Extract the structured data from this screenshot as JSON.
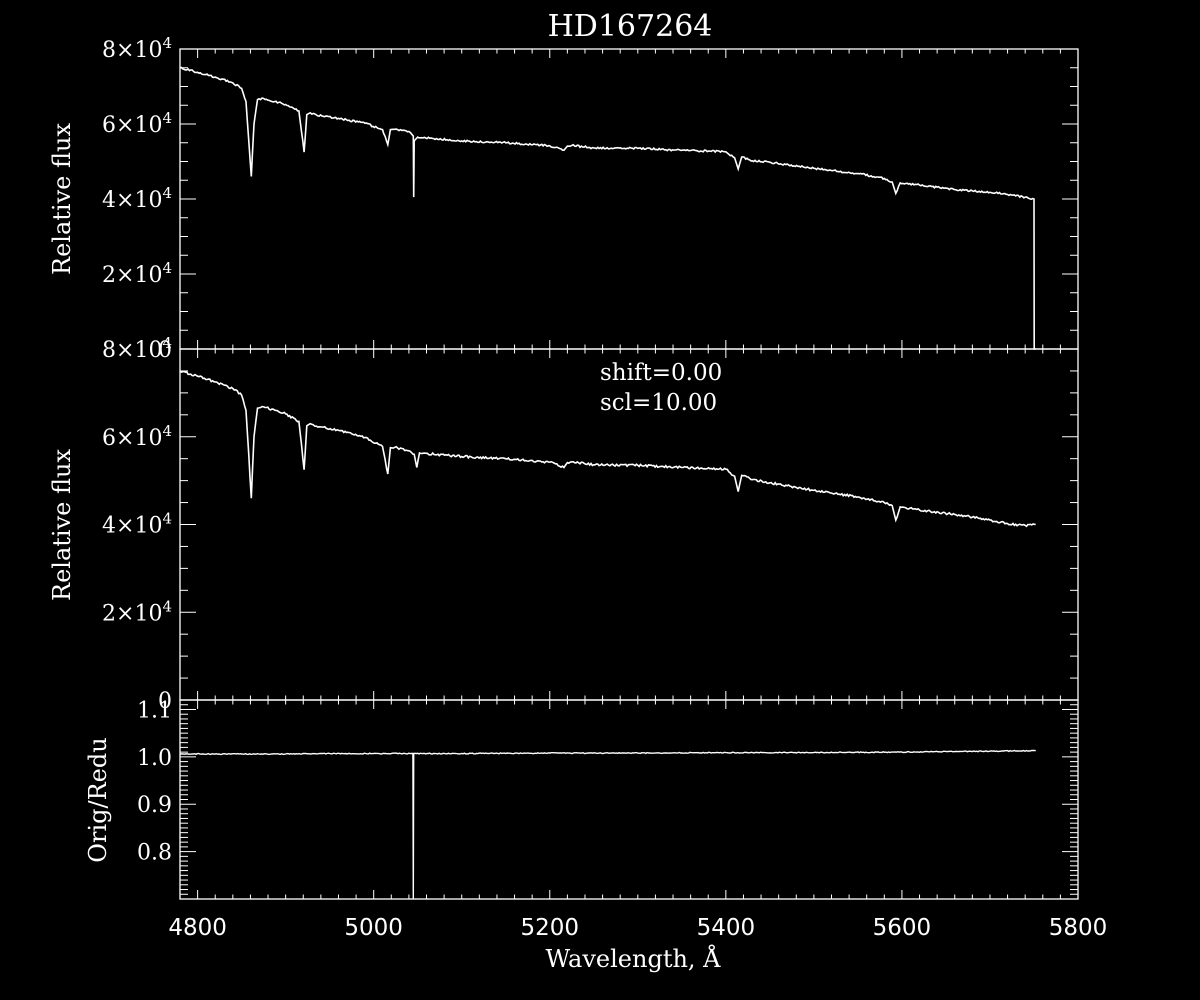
{
  "colors": {
    "background": "#000000",
    "foreground": "#ffffff"
  },
  "chart_data": [
    {
      "type": "line",
      "title": "HD167264",
      "ylabel": "Relative flux",
      "xlim": [
        4780,
        5800
      ],
      "ylim": [
        0,
        80000
      ],
      "y_ticks": [
        0,
        20000,
        40000,
        60000,
        80000
      ],
      "y_tick_labels": [
        {
          "base": "0",
          "exp": ""
        },
        {
          "base": "2×10",
          "exp": "4"
        },
        {
          "base": "4×10",
          "exp": "4"
        },
        {
          "base": "6×10",
          "exp": "4"
        },
        {
          "base": "8×10",
          "exp": "4"
        }
      ],
      "grid": false,
      "series": [
        {
          "x": [
            4780,
            4800,
            4820,
            4840,
            4850,
            4855,
            4861,
            4864,
            4868,
            4875,
            4900,
            4915,
            4921,
            4924,
            4928,
            4935,
            4960,
            4990,
            5010,
            5016,
            5019,
            5024,
            5040,
            5045,
            5045.5,
            5046,
            5050,
            5100,
            5150,
            5200,
            5216,
            5220,
            5225,
            5250,
            5300,
            5350,
            5400,
            5410,
            5414,
            5418,
            5430,
            5450,
            5500,
            5550,
            5580,
            5589,
            5593,
            5598,
            5620,
            5660,
            5700,
            5720,
            5740,
            5750,
            5750.2,
            5752
          ],
          "y": [
            75000,
            73800,
            72500,
            71000,
            69500,
            66000,
            46000,
            60000,
            66500,
            66800,
            65200,
            63500,
            52500,
            62500,
            63000,
            62400,
            61500,
            60200,
            58500,
            54500,
            58500,
            58600,
            58000,
            56800,
            40500,
            55500,
            56500,
            55500,
            55000,
            54200,
            53000,
            54100,
            54300,
            53600,
            53500,
            53000,
            52600,
            51000,
            48000,
            51200,
            50200,
            49800,
            48200,
            46800,
            45500,
            44500,
            41500,
            44300,
            43700,
            42500,
            41800,
            41200,
            40500,
            40000,
            0,
            0
          ]
        }
      ]
    },
    {
      "type": "line",
      "ylabel": "Relative flux",
      "xlim": [
        4780,
        5800
      ],
      "ylim": [
        0,
        80000
      ],
      "y_ticks": [
        0,
        20000,
        40000,
        60000,
        80000
      ],
      "y_tick_labels": [
        {
          "base": "0",
          "exp": ""
        },
        {
          "base": "2×10",
          "exp": "4"
        },
        {
          "base": "4×10",
          "exp": "4"
        },
        {
          "base": "6×10",
          "exp": "4"
        },
        {
          "base": "8×10",
          "exp": "4"
        }
      ],
      "annotations": [
        "shift=0.00",
        "scl=10.00"
      ],
      "grid": false,
      "series": [
        {
          "x": [
            4780,
            4800,
            4820,
            4840,
            4850,
            4855,
            4861,
            4864,
            4868,
            4875,
            4900,
            4915,
            4921,
            4924,
            4928,
            4935,
            4960,
            4990,
            5010,
            5016,
            5019,
            5024,
            5040,
            5046,
            5049,
            5052,
            5100,
            5150,
            5200,
            5216,
            5220,
            5225,
            5250,
            5300,
            5350,
            5400,
            5410,
            5414,
            5418,
            5430,
            5450,
            5500,
            5550,
            5580,
            5589,
            5593,
            5598,
            5620,
            5660,
            5700,
            5720,
            5740,
            5752
          ],
          "y": [
            75000,
            73800,
            72500,
            71000,
            69500,
            66000,
            46000,
            60000,
            66500,
            66800,
            65200,
            63500,
            52500,
            62500,
            63000,
            62400,
            61500,
            59800,
            57800,
            51500,
            57500,
            57600,
            56800,
            56000,
            53000,
            56300,
            55500,
            55000,
            54200,
            53000,
            54100,
            54300,
            53600,
            53500,
            53000,
            52600,
            51000,
            47500,
            51200,
            50200,
            49500,
            47800,
            46300,
            45000,
            44300,
            41000,
            44000,
            43300,
            42300,
            41000,
            40200,
            39800,
            40000
          ]
        }
      ]
    },
    {
      "type": "line",
      "ylabel": "Orig/Redu",
      "xlabel": "Wavelength, Å",
      "xlim": [
        4780,
        5800
      ],
      "ylim": [
        0.7,
        1.12
      ],
      "y_ticks": [
        0.8,
        0.9,
        1.0,
        1.1
      ],
      "y_tick_labels": [
        "0.8",
        "0.9",
        "1.0",
        "1.1"
      ],
      "x_ticks": [
        4800,
        5000,
        5200,
        5400,
        5600,
        5800
      ],
      "x_tick_labels": [
        "4800",
        "5000",
        "5200",
        "5400",
        "5600",
        "5800"
      ],
      "grid": false,
      "series": [
        {
          "x": [
            4780,
            4850,
            4900,
            4950,
            5000,
            5044.5,
            5045,
            5045.5,
            5100,
            5200,
            5300,
            5400,
            5500,
            5600,
            5700,
            5752
          ],
          "y": [
            1.006,
            1.006,
            1.006,
            1.007,
            1.007,
            1.007,
            0.7,
            1.007,
            1.007,
            1.008,
            1.008,
            1.009,
            1.009,
            1.01,
            1.012,
            1.013
          ]
        }
      ]
    }
  ]
}
